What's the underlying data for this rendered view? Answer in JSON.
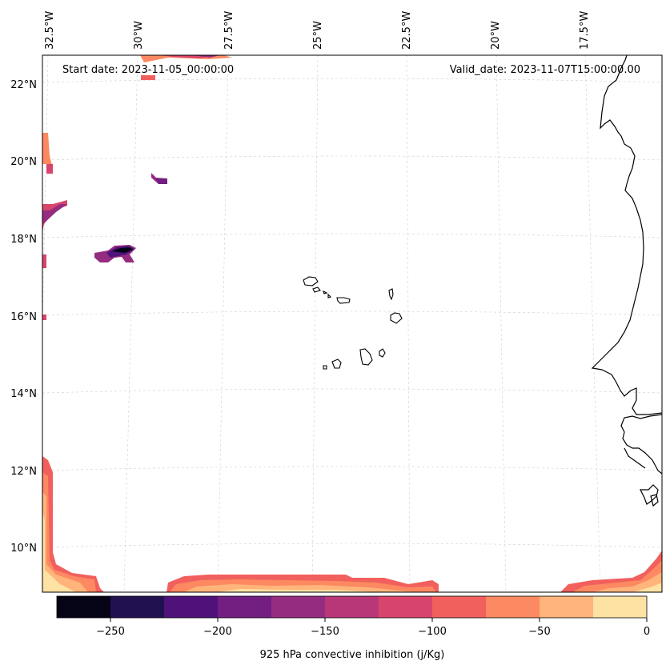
{
  "map": {
    "start_date": "Start date: 2023-11-05_00:00:00",
    "valid_date": "Valid_date: 2023-11-07T15:00:00.00",
    "lon_labels": [
      "32.5°W",
      "30°W",
      "27.5°W",
      "25°W",
      "22.5°W",
      "20°W",
      "17.5°W"
    ],
    "lat_labels": [
      "22°N",
      "20°N",
      "18°N",
      "16°N",
      "14°N",
      "12°N",
      "10°N"
    ],
    "region": "Cape Verde / West Africa",
    "gridlines": true
  },
  "colorbar": {
    "label": "925 hPa convective inhibition (j/Kg)",
    "ticks": [
      "−250",
      "−200",
      "−150",
      "−100",
      "−50",
      "0"
    ],
    "bins": [
      -275,
      -250,
      -225,
      -200,
      -175,
      -150,
      -125,
      -100,
      -75,
      -50,
      -25,
      0
    ],
    "colors": [
      "#050416",
      "#221150",
      "#4f127b",
      "#721f81",
      "#952c80",
      "#b73779",
      "#d8456c",
      "#f1605d",
      "#fc8961",
      "#feb47b",
      "#fde2a3"
    ]
  }
}
